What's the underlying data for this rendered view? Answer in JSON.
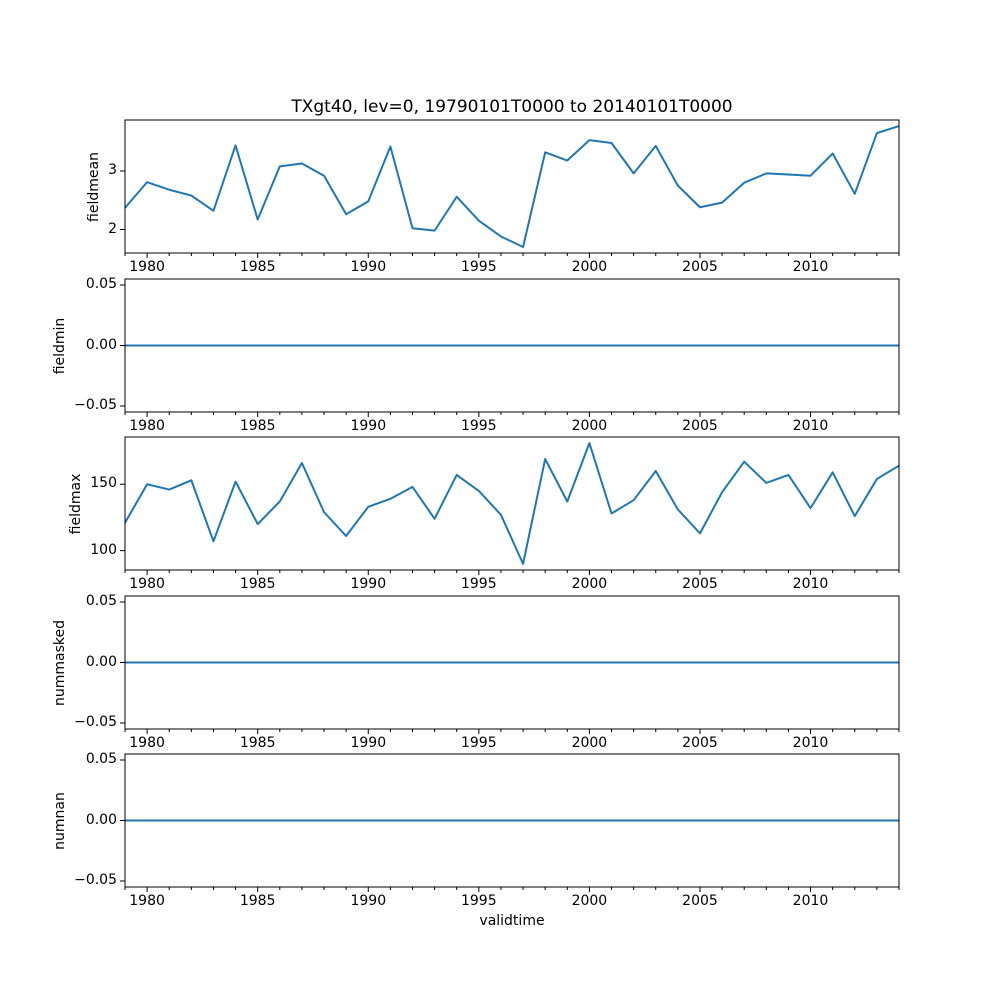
{
  "title": "TXgt40, lev=0, 19790101T0000 to 20140101T0000",
  "colors": {
    "line": "#1f77b4",
    "axis": "#000000",
    "background": "#ffffff"
  },
  "chart_data": {
    "type": "line",
    "layout": "5 stacked panels sharing one x axis",
    "title": "TXgt40, lev=0, 19790101T0000 to 20140101T0000",
    "x_label": "validtime",
    "x_lim": [
      1979,
      2014
    ],
    "x": [
      1979,
      1980,
      1981,
      1982,
      1983,
      1984,
      1985,
      1986,
      1987,
      1988,
      1989,
      1990,
      1991,
      1992,
      1993,
      1994,
      1995,
      1996,
      1997,
      1998,
      1999,
      2000,
      2001,
      2002,
      2003,
      2004,
      2005,
      2006,
      2007,
      2008,
      2009,
      2010,
      2011,
      2012,
      2013,
      2014
    ],
    "x_ticks": [
      1980,
      1985,
      1990,
      1995,
      2000,
      2005,
      2010
    ],
    "x_tick_labels": [
      "1980",
      "1985",
      "1990",
      "1995",
      "2000",
      "2005",
      "2010"
    ],
    "x_minor_tick_step": 1,
    "grid": false,
    "legend": "none",
    "panels": [
      {
        "name": "fieldmean",
        "type": "line",
        "values": [
          2.37,
          2.81,
          2.68,
          2.58,
          2.32,
          3.44,
          2.17,
          3.08,
          3.13,
          2.92,
          2.26,
          2.48,
          3.42,
          2.02,
          1.98,
          2.56,
          2.15,
          1.88,
          1.7,
          3.32,
          3.18,
          3.53,
          3.48,
          2.96,
          3.43,
          2.75,
          2.38,
          2.46,
          2.8,
          2.96,
          2.94,
          2.92,
          3.3,
          2.61,
          3.65,
          3.77
        ],
        "ylim": [
          1.597,
          3.874
        ],
        "y_ticks": [
          3,
          2
        ],
        "y_tick_labels": [
          "3",
          "2"
        ]
      },
      {
        "name": "fieldmin",
        "type": "line",
        "values": [
          0,
          0,
          0,
          0,
          0,
          0,
          0,
          0,
          0,
          0,
          0,
          0,
          0,
          0,
          0,
          0,
          0,
          0,
          0,
          0,
          0,
          0,
          0,
          0,
          0,
          0,
          0,
          0,
          0,
          0,
          0,
          0,
          0,
          0,
          0,
          0
        ],
        "ylim": [
          -0.055,
          0.055
        ],
        "y_ticks": [
          0.05,
          0,
          -0.05
        ],
        "y_tick_labels": [
          "0.05",
          "0.00",
          "−0.05"
        ]
      },
      {
        "name": "fieldmax",
        "type": "line",
        "values": [
          121,
          150,
          146,
          153,
          107,
          152,
          120,
          137,
          166,
          129,
          111,
          133,
          139,
          148,
          124,
          157,
          145,
          127,
          90,
          169,
          137,
          181,
          128,
          138,
          160,
          131,
          113,
          144,
          167,
          151,
          157,
          132,
          159,
          126,
          154,
          164
        ],
        "ylim": [
          85.4,
          185.6
        ],
        "y_ticks": [
          150,
          100
        ],
        "y_tick_labels": [
          "150",
          "100"
        ]
      },
      {
        "name": "nummasked",
        "type": "line",
        "values": [
          0,
          0,
          0,
          0,
          0,
          0,
          0,
          0,
          0,
          0,
          0,
          0,
          0,
          0,
          0,
          0,
          0,
          0,
          0,
          0,
          0,
          0,
          0,
          0,
          0,
          0,
          0,
          0,
          0,
          0,
          0,
          0,
          0,
          0,
          0,
          0
        ],
        "ylim": [
          -0.055,
          0.055
        ],
        "y_ticks": [
          0.05,
          0,
          -0.05
        ],
        "y_tick_labels": [
          "0.05",
          "0.00",
          "−0.05"
        ]
      },
      {
        "name": "numnan",
        "type": "line",
        "values": [
          0,
          0,
          0,
          0,
          0,
          0,
          0,
          0,
          0,
          0,
          0,
          0,
          0,
          0,
          0,
          0,
          0,
          0,
          0,
          0,
          0,
          0,
          0,
          0,
          0,
          0,
          0,
          0,
          0,
          0,
          0,
          0,
          0,
          0,
          0,
          0
        ],
        "ylim": [
          -0.055,
          0.055
        ],
        "y_ticks": [
          0.05,
          0,
          -0.05
        ],
        "y_tick_labels": [
          "0.05",
          "0.00",
          "−0.05"
        ]
      }
    ]
  }
}
